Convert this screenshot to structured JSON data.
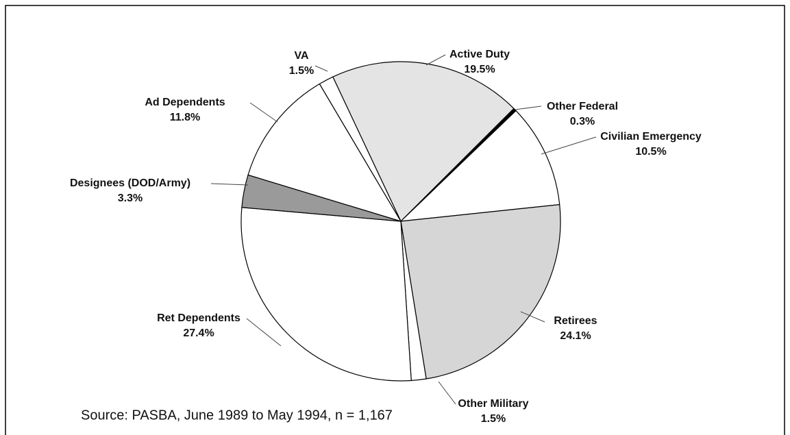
{
  "chart_data": {
    "type": "pie",
    "labels": [
      "Active Duty",
      "Other Federal",
      "Civilian Emergency",
      "Retirees",
      "Other Military",
      "Ret Dependents",
      "Designees (DOD/Army)",
      "Ad Dependents",
      "VA"
    ],
    "values": [
      19.5,
      0.3,
      10.5,
      24.1,
      1.5,
      27.4,
      3.3,
      11.8,
      1.5
    ],
    "value_labels": [
      "19.5%",
      "0.3%",
      "10.5%",
      "24.1%",
      "1.5%",
      "27.4%",
      "3.3%",
      "11.8%",
      "1.5%"
    ],
    "colors": [
      "#e4e4e4",
      "#000000",
      "#ffffff",
      "#d6d6d6",
      "#ffffff",
      "#ffffff",
      "#9a9a9a",
      "#ffffff",
      "#ffffff"
    ],
    "source": "Source:  PASBA, June 1989 to May 1994, n = 1,167"
  }
}
